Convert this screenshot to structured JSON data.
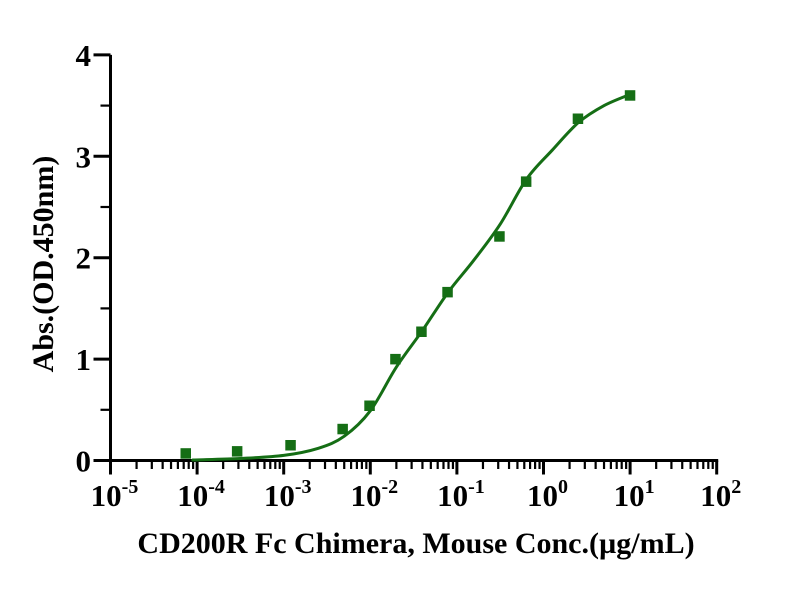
{
  "figure": {
    "background": "#ffffff",
    "text_color": "#000000",
    "accent_green": "#156e15"
  },
  "chart_data": {
    "type": "scatter",
    "title": "",
    "xlabel": "CD200R Fc Chimera, Mouse Conc.(µg/mL)",
    "ylabel": "Abs.(OD.450nm)",
    "x_scale": "log10",
    "xlim_log10": [
      -5,
      2
    ],
    "ylim": [
      0,
      4
    ],
    "grid": false,
    "legend": "none",
    "x_tick_exponents": [
      -5,
      -4,
      -3,
      -2,
      -1,
      0,
      1,
      2
    ],
    "x_tick_base": "10",
    "y_ticks": [
      0,
      1,
      2,
      3,
      4
    ],
    "y_minor_step": 0.5,
    "series": [
      {
        "name": "CD200R Fc Chimera, Mouse",
        "marker": "square",
        "color": "#156e15",
        "x": [
          7.4e-05,
          0.00029,
          0.0012,
          0.0048,
          0.0098,
          0.0195,
          0.039,
          0.078,
          0.31,
          0.63,
          2.5,
          10
        ],
        "y": [
          0.07,
          0.09,
          0.15,
          0.31,
          0.54,
          1.0,
          1.27,
          1.66,
          2.21,
          2.75,
          3.37,
          3.6
        ]
      }
    ],
    "fit_curve": {
      "name": "4PL fit curve",
      "color": "#156e15",
      "log10x": [
        -4.05,
        -3.5,
        -3.0,
        -2.6,
        -2.3,
        -2.0,
        -1.7,
        -1.4,
        -1.1,
        -0.8,
        -0.5,
        -0.2,
        0.1,
        0.4,
        0.7,
        1.0
      ],
      "y": [
        0.005,
        0.02,
        0.05,
        0.12,
        0.24,
        0.49,
        0.92,
        1.28,
        1.66,
        1.98,
        2.33,
        2.77,
        3.06,
        3.33,
        3.5,
        3.61
      ]
    }
  }
}
